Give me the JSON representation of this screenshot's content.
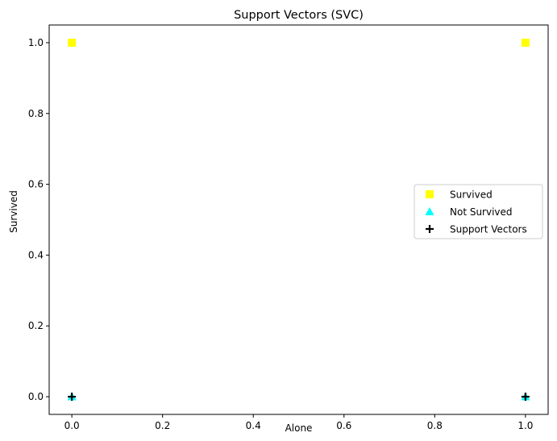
{
  "chart_data": {
    "type": "scatter",
    "title": "Support Vectors (SVC)",
    "xlabel": "Alone",
    "ylabel": "Survived",
    "xlim": [
      -0.05,
      1.05
    ],
    "ylim": [
      -0.05,
      1.05
    ],
    "xticks": [
      0.0,
      0.2,
      0.4,
      0.6,
      0.8,
      1.0
    ],
    "yticks": [
      0.0,
      0.2,
      0.4,
      0.6,
      0.8,
      1.0
    ],
    "xtick_labels": [
      "0.0",
      "0.2",
      "0.4",
      "0.6",
      "0.8",
      "1.0"
    ],
    "ytick_labels": [
      "0.0",
      "0.2",
      "0.4",
      "0.6",
      "0.8",
      "1.0"
    ],
    "grid": false,
    "legend_position": "center-right",
    "series": [
      {
        "name": "Survived",
        "marker": "square",
        "color": "#ffff00",
        "points": [
          [
            0,
            1
          ],
          [
            1,
            1
          ]
        ]
      },
      {
        "name": "Not Survived",
        "marker": "triangle",
        "color": "#00ffff",
        "points": [
          [
            0,
            0
          ],
          [
            1,
            0
          ]
        ]
      },
      {
        "name": "Support Vectors",
        "marker": "plus",
        "color": "#000000",
        "points": [
          [
            0,
            0
          ],
          [
            1,
            0
          ]
        ]
      }
    ]
  }
}
